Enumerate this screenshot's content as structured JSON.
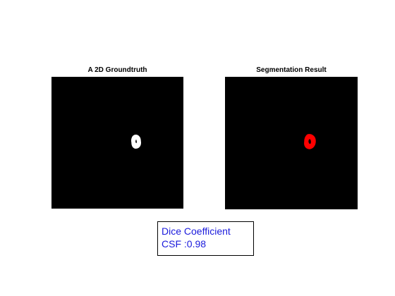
{
  "figure": {
    "background": "#ffffff"
  },
  "panels": {
    "groundtruth": {
      "title": "A 2D Groundtruth",
      "mask_color": "#ffffff",
      "background": "#000000"
    },
    "segmentation": {
      "title": "Segmentation Result",
      "mask_color": "#ff0000",
      "background": "#000000"
    }
  },
  "annotation": {
    "line1": "Dice Coefficient",
    "line2": "CSF :0.98",
    "text_color": "#1a1adc",
    "border_color": "#000000"
  }
}
